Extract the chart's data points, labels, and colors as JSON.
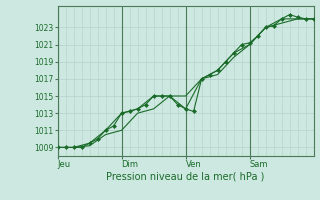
{
  "xlabel": "Pression niveau de la mer( hPa )",
  "bg_color": "#cde8e0",
  "grid_color": "#b8d4cc",
  "line_color": "#1a6b2a",
  "tick_label_color": "#1a6b2a",
  "spine_color": "#4a7a5a",
  "yticks": [
    1009,
    1011,
    1013,
    1015,
    1017,
    1019,
    1021,
    1023
  ],
  "ylim": [
    1008.0,
    1025.5
  ],
  "xlim": [
    0,
    96
  ],
  "day_lines": [
    {
      "x": 0,
      "label": "Jeu"
    },
    {
      "x": 24,
      "label": "Dim"
    },
    {
      "x": 48,
      "label": "Ven"
    },
    {
      "x": 72,
      "label": "Sam"
    }
  ],
  "vlines": [
    0,
    24,
    48,
    72
  ],
  "series": [
    {
      "x": [
        0,
        3,
        6,
        9,
        12,
        15,
        18,
        21,
        24,
        27,
        30,
        33,
        36,
        39,
        42,
        45,
        48,
        51,
        54,
        57,
        60,
        63,
        66,
        69,
        72,
        75,
        78,
        81,
        84,
        87,
        90,
        93,
        96
      ],
      "y": [
        1009,
        1009,
        1009,
        1009,
        1009.5,
        1010,
        1011,
        1011.5,
        1013,
        1013.2,
        1013.5,
        1014,
        1015,
        1015,
        1015,
        1014,
        1013.5,
        1013.2,
        1017,
        1017.5,
        1018,
        1019,
        1020,
        1021,
        1021.2,
        1022,
        1023,
        1023.2,
        1024,
        1024.5,
        1024.2,
        1024,
        1024
      ],
      "marker": "D",
      "markersize": 2.0
    },
    {
      "x": [
        0,
        6,
        12,
        18,
        24,
        30,
        36,
        42,
        48,
        54,
        60,
        66,
        72,
        78,
        84,
        90,
        96
      ],
      "y": [
        1009,
        1009,
        1009.5,
        1011,
        1013,
        1013.5,
        1015,
        1015,
        1015,
        1017,
        1018,
        1020,
        1021,
        1023,
        1024,
        1024,
        1024
      ],
      "marker": null
    },
    {
      "x": [
        0,
        6,
        12,
        18,
        24,
        30,
        36,
        42,
        48,
        54,
        60,
        66,
        72,
        78,
        84,
        90,
        96
      ],
      "y": [
        1009,
        1009,
        1009.2,
        1010.5,
        1011,
        1013,
        1013.5,
        1015,
        1013.5,
        1017,
        1017.5,
        1019.5,
        1021,
        1023,
        1023.5,
        1024,
        1024
      ],
      "marker": null
    }
  ]
}
